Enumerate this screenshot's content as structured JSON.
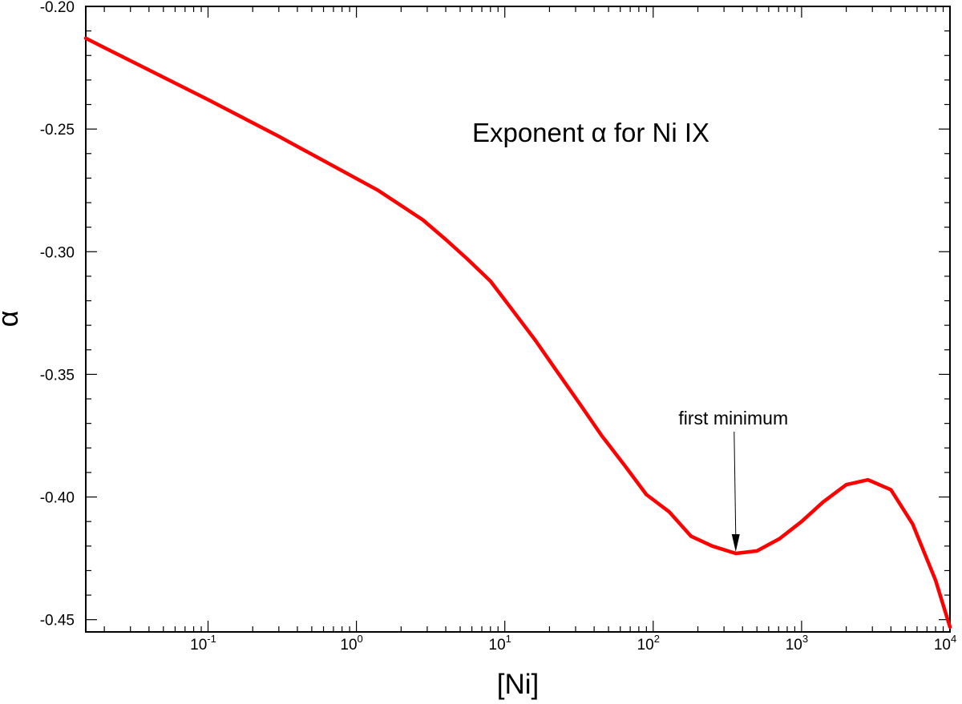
{
  "chart_data": {
    "type": "line",
    "title": "Exponent α for Ni IX",
    "xlabel": "[Ni]",
    "ylabel": "α",
    "x_scale": "log",
    "x_range": [
      0.015,
      10000
    ],
    "y_range": [
      -0.455,
      -0.2
    ],
    "grid": false,
    "x_tick_labels": [
      {
        "base": "10",
        "exp": "-1",
        "value": 0.1
      },
      {
        "base": "10",
        "exp": "0",
        "value": 1
      },
      {
        "base": "10",
        "exp": "1",
        "value": 10
      },
      {
        "base": "10",
        "exp": "2",
        "value": 100
      },
      {
        "base": "10",
        "exp": "3",
        "value": 1000
      },
      {
        "base": "10",
        "exp": "4",
        "value": 10000
      }
    ],
    "y_ticks": [
      {
        "label": "-0.20",
        "value": -0.2
      },
      {
        "label": "-0.25",
        "value": -0.25
      },
      {
        "label": "-0.30",
        "value": -0.3
      },
      {
        "label": "-0.35",
        "value": -0.35
      },
      {
        "label": "-0.40",
        "value": -0.4
      },
      {
        "label": "-0.45",
        "value": -0.45
      }
    ],
    "series": [
      {
        "color": "#ff0000",
        "x": [
          0.015,
          0.1,
          0.3,
          1.4,
          2.8,
          4,
          5.6,
          8,
          11,
          16,
          22,
          32,
          45,
          64,
          90,
          128,
          180,
          250,
          360,
          500,
          710,
          1000,
          1400,
          2000,
          2800,
          4000,
          5600,
          8000,
          10000
        ],
        "y": [
          -0.213,
          -0.238,
          -0.253,
          -0.275,
          -0.287,
          -0.295,
          -0.303,
          -0.312,
          -0.323,
          -0.336,
          -0.348,
          -0.362,
          -0.375,
          -0.387,
          -0.399,
          -0.406,
          -0.416,
          -0.42,
          -0.423,
          -0.422,
          -0.417,
          -0.41,
          -0.402,
          -0.395,
          -0.393,
          -0.397,
          -0.411,
          -0.434,
          -0.453
        ]
      }
    ],
    "annotations": [
      {
        "text": "first minimum",
        "x": 360,
        "y": -0.423
      }
    ]
  }
}
